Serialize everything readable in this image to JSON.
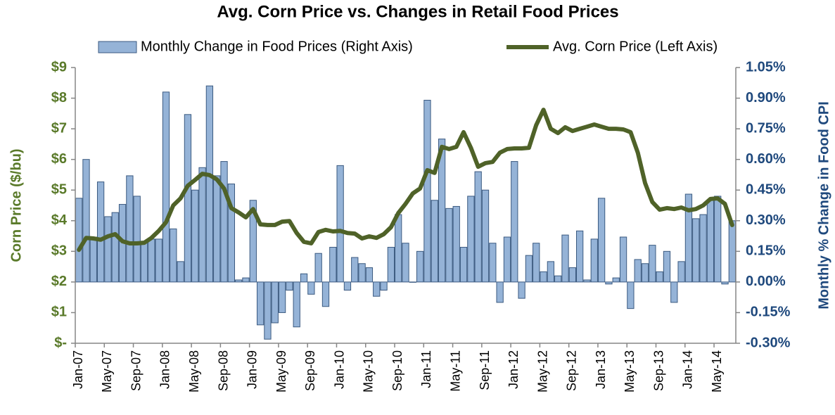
{
  "chart_data": {
    "type": "bar-line",
    "title": "Avg. Corn Price vs. Changes in Retail Food Prices",
    "ylabel": "Corn Price ($/bu)",
    "y2label": "Monthly % Change in Food CPI",
    "categories": [
      "Jan-07",
      null,
      null,
      null,
      "May-07",
      null,
      null,
      null,
      "Sep-07",
      null,
      null,
      null,
      "Jan-08",
      null,
      null,
      null,
      "May-08",
      null,
      null,
      null,
      "Sep-08",
      null,
      null,
      null,
      "Jan-09",
      null,
      null,
      null,
      "May-09",
      null,
      null,
      null,
      "Sep-09",
      null,
      null,
      null,
      "Jan-10",
      null,
      null,
      null,
      "May-10",
      null,
      null,
      null,
      "Sep-10",
      null,
      null,
      null,
      "Jan-11",
      null,
      null,
      null,
      "May-11",
      null,
      null,
      null,
      "Sep-11",
      null,
      null,
      null,
      "Jan-12",
      null,
      null,
      null,
      "May-12",
      null,
      null,
      null,
      "Sep-12",
      null,
      null,
      null,
      "Jan-13",
      null,
      null,
      null,
      "May-13",
      null,
      null,
      null,
      "Sep-13",
      null,
      null,
      null,
      "Jan-14",
      null,
      null,
      null,
      "May-14",
      null,
      null
    ],
    "series": [
      {
        "name": "Monthly Change in Food Prices (Right Axis)",
        "type": "bar",
        "axis": "y2",
        "color": "#95b3d7",
        "values": [
          0.41,
          0.6,
          0.22,
          0.49,
          0.32,
          0.34,
          0.38,
          0.52,
          0.42,
          0.2,
          0.21,
          0.21,
          0.93,
          0.26,
          0.1,
          0.82,
          0.45,
          0.56,
          0.96,
          0.52,
          0.59,
          0.48,
          0.01,
          0.02,
          0.4,
          -0.21,
          -0.28,
          -0.2,
          -0.15,
          -0.04,
          -0.22,
          0.04,
          -0.06,
          0.14,
          -0.12,
          0.17,
          0.57,
          -0.04,
          0.12,
          0.09,
          0.07,
          -0.07,
          -0.04,
          0.17,
          0.33,
          0.19,
          0.0,
          0.15,
          0.89,
          0.4,
          0.7,
          0.36,
          0.37,
          0.17,
          0.42,
          0.54,
          0.45,
          0.19,
          -0.1,
          0.22,
          0.59,
          -0.08,
          0.13,
          0.19,
          0.05,
          0.1,
          0.03,
          0.23,
          0.07,
          0.25,
          0.01,
          0.21,
          0.41,
          -0.01,
          0.02,
          0.22,
          -0.13,
          0.11,
          0.09,
          0.18,
          0.05,
          0.15,
          -0.1,
          0.1,
          0.43,
          0.31,
          0.33,
          0.4,
          0.42,
          -0.01,
          0.3
        ]
      },
      {
        "name": "Avg. Corn Price (Left Axis)",
        "type": "line",
        "axis": "y",
        "color": "#4f6228",
        "values": [
          3.05,
          3.44,
          3.42,
          3.38,
          3.49,
          3.56,
          3.33,
          3.26,
          3.26,
          3.28,
          3.44,
          3.67,
          3.95,
          4.5,
          4.73,
          5.14,
          5.33,
          5.53,
          5.49,
          5.35,
          5.05,
          4.41,
          4.27,
          4.11,
          4.38,
          3.88,
          3.86,
          3.86,
          3.97,
          3.99,
          3.6,
          3.31,
          3.26,
          3.63,
          3.7,
          3.65,
          3.67,
          3.6,
          3.58,
          3.42,
          3.49,
          3.44,
          3.56,
          3.79,
          4.25,
          4.55,
          4.89,
          5.05,
          5.65,
          5.56,
          6.41,
          6.34,
          6.41,
          6.89,
          6.38,
          5.76,
          5.88,
          5.92,
          6.22,
          6.34,
          6.36,
          6.36,
          6.38,
          7.12,
          7.62,
          7.0,
          6.86,
          7.05,
          6.93,
          7.0,
          7.07,
          7.14,
          7.07,
          7.0,
          7.0,
          6.98,
          6.89,
          6.22,
          5.23,
          4.61,
          4.36,
          4.41,
          4.38,
          4.43,
          4.34,
          4.38,
          4.5,
          4.71,
          4.73,
          4.55,
          3.86
        ]
      }
    ],
    "ylim": [
      0,
      9
    ],
    "yticks": [
      {
        "value": 0,
        "label": "$-"
      },
      {
        "value": 1,
        "label": "$1"
      },
      {
        "value": 2,
        "label": "$2"
      },
      {
        "value": 3,
        "label": "$3"
      },
      {
        "value": 4,
        "label": "$4"
      },
      {
        "value": 5,
        "label": "$5"
      },
      {
        "value": 6,
        "label": "$6"
      },
      {
        "value": 7,
        "label": "$7"
      },
      {
        "value": 8,
        "label": "$8"
      },
      {
        "value": 9,
        "label": "$9"
      }
    ],
    "y2lim": [
      -0.3,
      1.05
    ],
    "y2ticks": [
      {
        "value": -0.3,
        "label": "-0.30%"
      },
      {
        "value": -0.15,
        "label": "-0.15%"
      },
      {
        "value": 0,
        "label": "0.00%"
      },
      {
        "value": 0.15,
        "label": "0.15%"
      },
      {
        "value": 0.3,
        "label": "0.30%"
      },
      {
        "value": 0.45,
        "label": "0.45%"
      },
      {
        "value": 0.6,
        "label": "0.60%"
      },
      {
        "value": 0.75,
        "label": "0.75%"
      },
      {
        "value": 0.9,
        "label": "0.90%"
      },
      {
        "value": 1.05,
        "label": "1.05%"
      }
    ],
    "legend": "top"
  }
}
